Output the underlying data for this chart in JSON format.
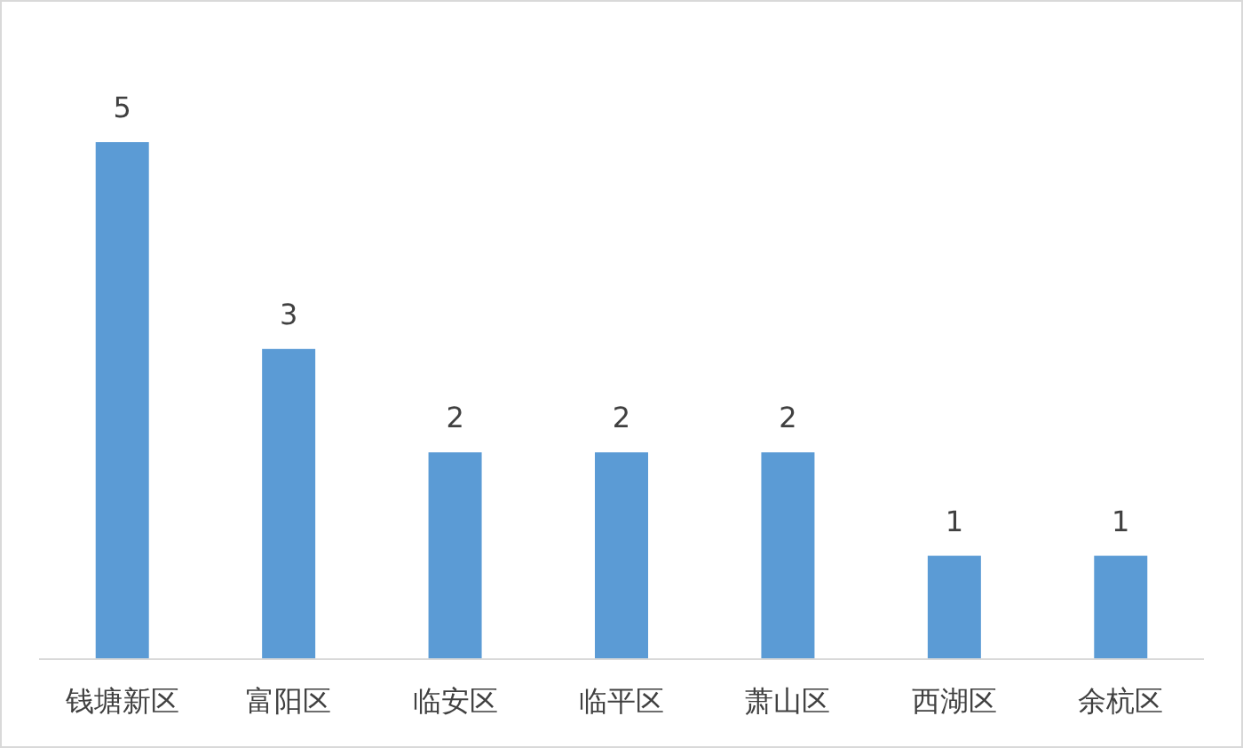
{
  "chart_data": {
    "type": "bar",
    "categories": [
      "钱塘新区",
      "富阳区",
      "临安区",
      "临平区",
      "萧山区",
      "西湖区",
      "余杭区"
    ],
    "values": [
      5,
      3,
      2,
      2,
      2,
      1,
      1
    ],
    "color": "#5b9bd5",
    "data_labels": true
  }
}
